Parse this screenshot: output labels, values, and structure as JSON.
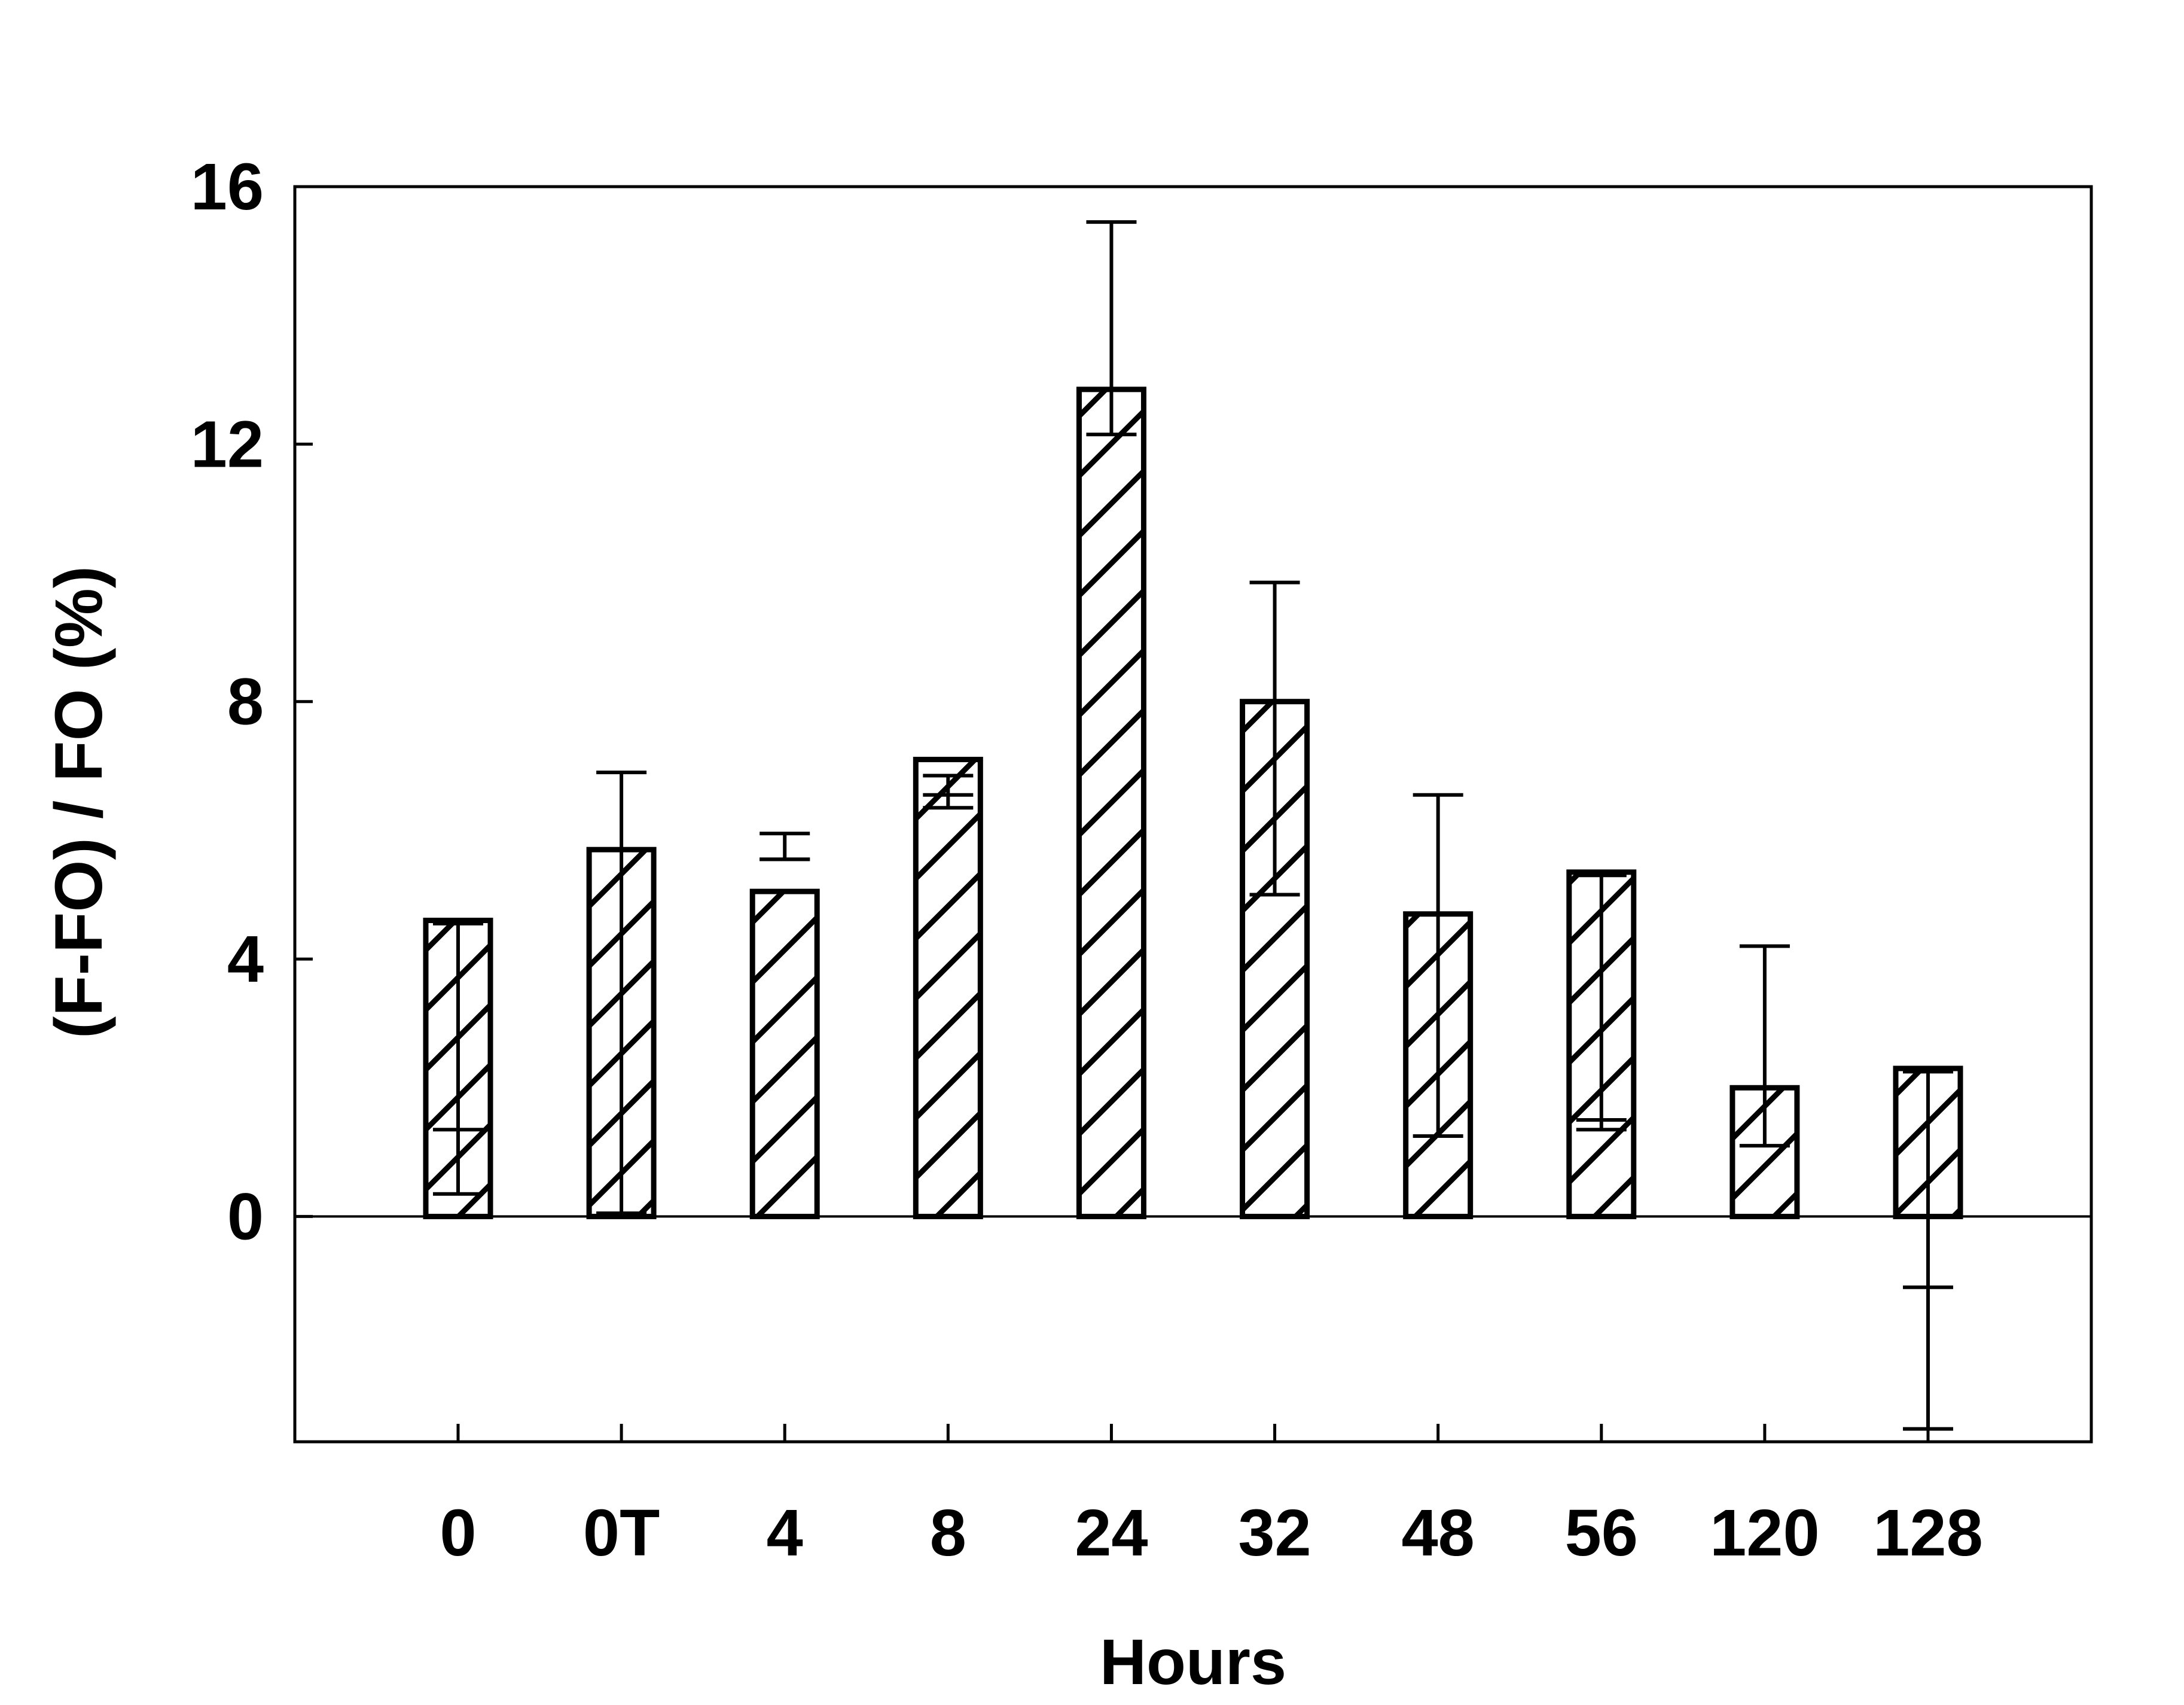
{
  "chart_data": {
    "type": "bar",
    "title": "",
    "xlabel": "Hours",
    "ylabel": "(F-FO) / FO (%)",
    "categories": [
      "0",
      "0T",
      "4",
      "8",
      "24",
      "32",
      "48",
      "56",
      "120",
      "128"
    ],
    "values": [
      4.6,
      5.7,
      5.05,
      7.1,
      12.85,
      8.0,
      4.7,
      5.35,
      2.0,
      2.3
    ],
    "error_upper": [
      4.55,
      6.9,
      5.95,
      6.85,
      15.45,
      9.85,
      6.55,
      5.3,
      4.2,
      2.25
    ],
    "error_lower": [
      0.35,
      0.05,
      5.55,
      6.35,
      12.15,
      5.0,
      1.25,
      1.35,
      1.1,
      -3.3
    ],
    "error_extra_tick": [
      1.35,
      null,
      5.55,
      6.55,
      null,
      null,
      null,
      1.5,
      null,
      -1.1
    ],
    "ylim": [
      -3.5,
      16
    ],
    "yticks": [
      0,
      4,
      8,
      12,
      16
    ],
    "pattern": "diagonal-hatch",
    "grid": false,
    "legend": "none",
    "colors": {
      "bar_stroke": "#000000",
      "bar_fill": "#ffffff",
      "hatch": "#000000"
    }
  }
}
